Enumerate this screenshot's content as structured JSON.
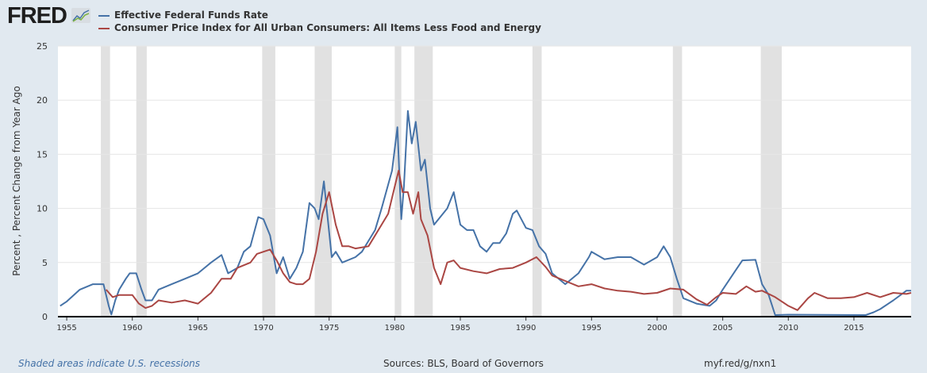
{
  "logo": "FRED",
  "colors": {
    "fed": "#4572a7",
    "cpi": "#aa4643",
    "recession": "#e1e1e1",
    "bg": "#e1e9f0"
  },
  "footer": {
    "recession_note": "Shaded areas indicate U.S. recessions",
    "sources": "Sources: BLS, Board of Governors",
    "link": "myf.red/g/nxn1"
  },
  "chart_data": {
    "type": "line",
    "title": "",
    "xlabel": "",
    "ylabel": "Percent , Percent Change from Year Ago",
    "xlim": [
      1954.33,
      2019.36
    ],
    "ylim": [
      0,
      25
    ],
    "grid": true,
    "legend": "top-left",
    "x_ticks": [
      "1955",
      "1960",
      "1965",
      "1970",
      "1975",
      "1980",
      "1985",
      "1990",
      "1995",
      "2000",
      "2005",
      "2010",
      "2015"
    ],
    "y_ticks": [
      "0",
      "5",
      "10",
      "15",
      "20",
      "25"
    ],
    "recessions": [
      [
        1957.6,
        1958.3
      ],
      [
        1960.3,
        1961.1
      ],
      [
        1969.9,
        1970.9
      ],
      [
        1973.9,
        1975.2
      ],
      [
        1980.0,
        1980.5
      ],
      [
        1981.5,
        1982.9
      ],
      [
        1990.5,
        1991.2
      ],
      [
        2001.2,
        2001.9
      ],
      [
        2007.9,
        2009.5
      ]
    ],
    "series": [
      {
        "name": "Effective Federal Funds Rate",
        "points": [
          [
            1954.5,
            1.0
          ],
          [
            1955,
            1.4
          ],
          [
            1956,
            2.5
          ],
          [
            1957,
            3.0
          ],
          [
            1957.8,
            3.0
          ],
          [
            1958.2,
            1.0
          ],
          [
            1958.4,
            0.2
          ],
          [
            1958.7,
            1.5
          ],
          [
            1959,
            2.5
          ],
          [
            1959.5,
            3.5
          ],
          [
            1959.8,
            4.0
          ],
          [
            1960.3,
            4.0
          ],
          [
            1960.7,
            2.5
          ],
          [
            1961,
            1.5
          ],
          [
            1961.5,
            1.5
          ],
          [
            1962,
            2.5
          ],
          [
            1963,
            3.0
          ],
          [
            1964,
            3.5
          ],
          [
            1965,
            4.0
          ],
          [
            1966,
            5.0
          ],
          [
            1966.8,
            5.7
          ],
          [
            1967.3,
            4.0
          ],
          [
            1968,
            4.5
          ],
          [
            1968.5,
            6.0
          ],
          [
            1969,
            6.5
          ],
          [
            1969.6,
            9.2
          ],
          [
            1970,
            9.0
          ],
          [
            1970.5,
            7.5
          ],
          [
            1971,
            4.0
          ],
          [
            1971.5,
            5.5
          ],
          [
            1972,
            3.5
          ],
          [
            1972.5,
            4.5
          ],
          [
            1973,
            6.0
          ],
          [
            1973.5,
            10.5
          ],
          [
            1973.9,
            10.0
          ],
          [
            1974.2,
            9.0
          ],
          [
            1974.6,
            12.5
          ],
          [
            1974.9,
            9.0
          ],
          [
            1975.2,
            5.5
          ],
          [
            1975.5,
            6.0
          ],
          [
            1976,
            5.0
          ],
          [
            1977,
            5.5
          ],
          [
            1977.5,
            6.0
          ],
          [
            1978,
            7.0
          ],
          [
            1978.5,
            8.0
          ],
          [
            1979,
            10.0
          ],
          [
            1979.8,
            13.5
          ],
          [
            1980.2,
            17.5
          ],
          [
            1980.5,
            9.0
          ],
          [
            1980.7,
            12.0
          ],
          [
            1981,
            19.0
          ],
          [
            1981.3,
            16.0
          ],
          [
            1981.6,
            18.0
          ],
          [
            1982,
            13.5
          ],
          [
            1982.3,
            14.5
          ],
          [
            1982.7,
            10.0
          ],
          [
            1983,
            8.5
          ],
          [
            1984,
            10.0
          ],
          [
            1984.5,
            11.5
          ],
          [
            1985,
            8.5
          ],
          [
            1985.5,
            8.0
          ],
          [
            1986,
            8.0
          ],
          [
            1986.5,
            6.5
          ],
          [
            1987,
            6.0
          ],
          [
            1987.5,
            6.8
          ],
          [
            1988,
            6.8
          ],
          [
            1988.5,
            7.7
          ],
          [
            1989,
            9.5
          ],
          [
            1989.3,
            9.8
          ],
          [
            1990,
            8.2
          ],
          [
            1990.5,
            8.0
          ],
          [
            1991,
            6.5
          ],
          [
            1991.5,
            5.8
          ],
          [
            1992,
            4.0
          ],
          [
            1993,
            3.0
          ],
          [
            1994,
            4.0
          ],
          [
            1994.8,
            5.5
          ],
          [
            1995,
            6.0
          ],
          [
            1996,
            5.3
          ],
          [
            1997,
            5.5
          ],
          [
            1998,
            5.5
          ],
          [
            1999,
            4.8
          ],
          [
            2000,
            5.5
          ],
          [
            2000.5,
            6.5
          ],
          [
            2001,
            5.5
          ],
          [
            2001.5,
            3.5
          ],
          [
            2002,
            1.7
          ],
          [
            2003,
            1.2
          ],
          [
            2004,
            1.0
          ],
          [
            2004.5,
            1.5
          ],
          [
            2005,
            2.5
          ],
          [
            2006,
            4.3
          ],
          [
            2006.5,
            5.2
          ],
          [
            2007.5,
            5.25
          ],
          [
            2008,
            3.0
          ],
          [
            2008.5,
            2.0
          ],
          [
            2009,
            0.15
          ],
          [
            2010,
            0.18
          ],
          [
            2015.9,
            0.15
          ],
          [
            2016.5,
            0.4
          ],
          [
            2017,
            0.7
          ],
          [
            2018,
            1.5
          ],
          [
            2019,
            2.4
          ],
          [
            2019.36,
            2.4
          ]
        ]
      },
      {
        "name": "Consumer Price Index for All Urban Consumers: All Items Less Food and Energy",
        "points": [
          [
            1958,
            2.5
          ],
          [
            1958.5,
            1.8
          ],
          [
            1959,
            2.0
          ],
          [
            1959.5,
            2.0
          ],
          [
            1960,
            2.0
          ],
          [
            1960.5,
            1.2
          ],
          [
            1961,
            0.8
          ],
          [
            1961.5,
            1.0
          ],
          [
            1962,
            1.5
          ],
          [
            1963,
            1.3
          ],
          [
            1964,
            1.5
          ],
          [
            1965,
            1.2
          ],
          [
            1966,
            2.2
          ],
          [
            1966.8,
            3.5
          ],
          [
            1967.5,
            3.5
          ],
          [
            1968,
            4.5
          ],
          [
            1969,
            5.0
          ],
          [
            1969.5,
            5.8
          ],
          [
            1970,
            6.0
          ],
          [
            1970.5,
            6.2
          ],
          [
            1971,
            5.2
          ],
          [
            1971.5,
            4.0
          ],
          [
            1972,
            3.2
          ],
          [
            1972.5,
            3.0
          ],
          [
            1973,
            3.0
          ],
          [
            1973.5,
            3.5
          ],
          [
            1974,
            6.0
          ],
          [
            1974.5,
            9.5
          ],
          [
            1975,
            11.5
          ],
          [
            1975.5,
            8.5
          ],
          [
            1976,
            6.5
          ],
          [
            1976.5,
            6.5
          ],
          [
            1977,
            6.3
          ],
          [
            1978,
            6.5
          ],
          [
            1978.5,
            7.5
          ],
          [
            1979,
            8.5
          ],
          [
            1979.5,
            9.5
          ],
          [
            1980,
            12.0
          ],
          [
            1980.3,
            13.5
          ],
          [
            1980.6,
            11.5
          ],
          [
            1981,
            11.5
          ],
          [
            1981.4,
            9.5
          ],
          [
            1981.8,
            11.5
          ],
          [
            1982,
            9.0
          ],
          [
            1982.5,
            7.5
          ],
          [
            1983,
            4.5
          ],
          [
            1983.5,
            3.0
          ],
          [
            1984,
            5.0
          ],
          [
            1984.5,
            5.2
          ],
          [
            1985,
            4.5
          ],
          [
            1986,
            4.2
          ],
          [
            1987,
            4.0
          ],
          [
            1988,
            4.4
          ],
          [
            1989,
            4.5
          ],
          [
            1990,
            5.0
          ],
          [
            1990.8,
            5.5
          ],
          [
            1991.5,
            4.6
          ],
          [
            1992,
            3.8
          ],
          [
            1993,
            3.3
          ],
          [
            1994,
            2.8
          ],
          [
            1995,
            3.0
          ],
          [
            1996,
            2.6
          ],
          [
            1997,
            2.4
          ],
          [
            1998,
            2.3
          ],
          [
            1999,
            2.1
          ],
          [
            2000,
            2.2
          ],
          [
            2001,
            2.6
          ],
          [
            2002,
            2.5
          ],
          [
            2003,
            1.6
          ],
          [
            2003.8,
            1.1
          ],
          [
            2004.5,
            1.8
          ],
          [
            2005,
            2.2
          ],
          [
            2006,
            2.1
          ],
          [
            2006.8,
            2.8
          ],
          [
            2007.5,
            2.3
          ],
          [
            2008,
            2.4
          ],
          [
            2009,
            1.8
          ],
          [
            2010,
            1.0
          ],
          [
            2010.7,
            0.6
          ],
          [
            2011.5,
            1.7
          ],
          [
            2012,
            2.2
          ],
          [
            2013,
            1.7
          ],
          [
            2014,
            1.7
          ],
          [
            2015,
            1.8
          ],
          [
            2016,
            2.2
          ],
          [
            2017,
            1.8
          ],
          [
            2018,
            2.2
          ],
          [
            2019,
            2.1
          ],
          [
            2019.36,
            2.2
          ]
        ]
      }
    ]
  }
}
